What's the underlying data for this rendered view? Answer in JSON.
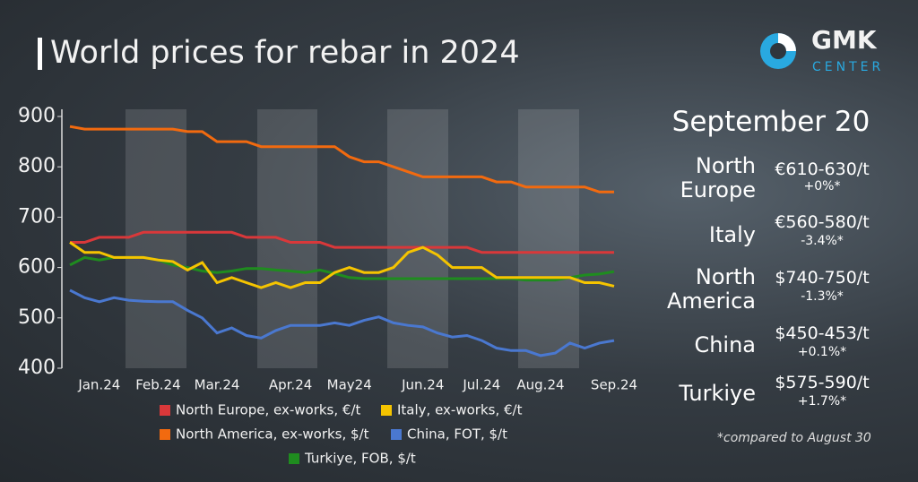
{
  "logo": {
    "name": "GMK",
    "sub": "CENTER"
  },
  "chart_data": {
    "type": "line",
    "title": "World prices for rebar in 2024",
    "categories": [
      null,
      null,
      "Jan.24",
      null,
      null,
      null,
      "Feb.24",
      null,
      null,
      null,
      "Mar.24",
      null,
      null,
      null,
      null,
      "Apr.24",
      null,
      null,
      null,
      "May24",
      null,
      null,
      null,
      null,
      "Jun.24",
      null,
      null,
      null,
      "Jul.24",
      null,
      null,
      null,
      "Aug.24",
      null,
      null,
      null,
      null,
      "Sep.24"
    ],
    "ylim": [
      400,
      900
    ],
    "yticks": [
      400,
      500,
      600,
      700,
      800,
      900
    ],
    "series": [
      {
        "name": "North Europe, ex-works, €/t",
        "color": "#d9383a",
        "values": [
          650,
          650,
          660,
          660,
          660,
          670,
          670,
          670,
          670,
          670,
          670,
          670,
          660,
          660,
          660,
          650,
          650,
          650,
          640,
          640,
          640,
          640,
          640,
          640,
          640,
          640,
          640,
          640,
          630,
          630,
          630,
          630,
          630,
          630,
          630,
          630,
          630,
          630
        ]
      },
      {
        "name": "Italy, ex-works, €/t",
        "color": "#f5c400",
        "values": [
          650,
          630,
          630,
          620,
          620,
          620,
          615,
          612,
          595,
          610,
          570,
          580,
          570,
          560,
          570,
          560,
          570,
          570,
          590,
          600,
          590,
          590,
          600,
          630,
          640,
          625,
          600,
          600,
          600,
          580,
          580,
          580,
          580,
          580,
          580,
          570,
          570,
          563
        ]
      },
      {
        "name": "North America, ex-works, $/t",
        "color": "#f26a0f",
        "values": [
          880,
          875,
          875,
          875,
          875,
          875,
          875,
          875,
          870,
          870,
          850,
          850,
          850,
          840,
          840,
          840,
          840,
          840,
          840,
          820,
          810,
          810,
          800,
          790,
          780,
          780,
          780,
          780,
          780,
          770,
          770,
          760,
          760,
          760,
          760,
          760,
          750,
          750
        ]
      },
      {
        "name": "China, FOT, $/t",
        "color": "#4a78d0",
        "values": [
          555,
          540,
          532,
          540,
          535,
          533,
          532,
          532,
          515,
          500,
          470,
          480,
          465,
          460,
          475,
          485,
          485,
          485,
          490,
          485,
          495,
          502,
          490,
          485,
          482,
          470,
          462,
          465,
          455,
          440,
          435,
          435,
          425,
          430,
          450,
          440,
          450,
          455
        ]
      },
      {
        "name": "Turkiye, FOB, $/t",
        "color": "#1f8c1f",
        "values": [
          605,
          620,
          615,
          620,
          620,
          620,
          615,
          605,
          600,
          593,
          590,
          593,
          598,
          598,
          595,
          593,
          590,
          595,
          588,
          580,
          578,
          578,
          578,
          578,
          578,
          578,
          578,
          578,
          578,
          578,
          578,
          575,
          575,
          575,
          580,
          585,
          587,
          592
        ]
      }
    ]
  },
  "panel": {
    "date": "September 20",
    "rows": [
      {
        "name": "North Europe",
        "price": "€610-630/t",
        "change": "+0%*"
      },
      {
        "name": "Italy",
        "price": "€560-580/t",
        "change": "-3.4%*"
      },
      {
        "name": "North America",
        "price": "$740-750/t",
        "change": "-1.3%*"
      },
      {
        "name": "China",
        "price": "$450-453/t",
        "change": "+0.1%*"
      },
      {
        "name": "Turkiye",
        "price": "$575-590/t",
        "change": "+1.7%*"
      }
    ],
    "footnote": "*compared to August 30"
  }
}
